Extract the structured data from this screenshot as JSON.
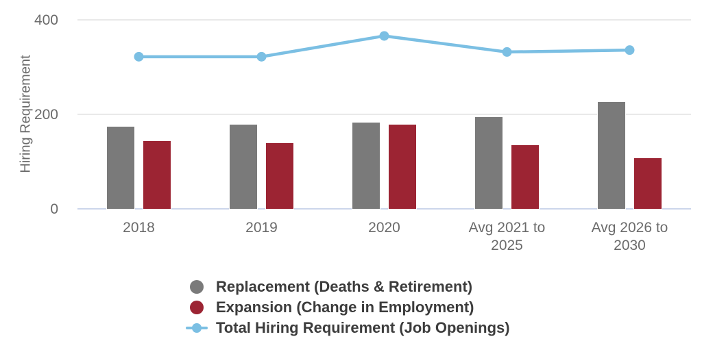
{
  "chart_data": {
    "type": "bar-line-combo",
    "title": "",
    "xlabel": "",
    "ylabel": "Hiring Requirement",
    "categories": [
      "2018",
      "2019",
      "2020",
      "Avg 2021 to 2025",
      "Avg 2026 to 2030"
    ],
    "yticks": [
      0,
      200,
      400
    ],
    "ylim": [
      0,
      400
    ],
    "grid": true,
    "legend_position": "bottom",
    "series": [
      {
        "name": "Replacement (Deaths & Retirement)",
        "type": "bar",
        "color": "#7a7a7a",
        "values": [
          175,
          180,
          184,
          195,
          227
        ]
      },
      {
        "name": "Expansion (Change in Employment)",
        "type": "bar",
        "color": "#9c2433",
        "values": [
          145,
          140,
          180,
          136,
          108
        ]
      },
      {
        "name": "Total Hiring Requirement (Job Openings)",
        "type": "line",
        "color": "#7bbfe3",
        "values": [
          322,
          322,
          366,
          332,
          336
        ]
      }
    ]
  },
  "colors": {
    "gridline": "#e9e9e9",
    "axis_line": "#ccd6eb",
    "tick_text": "#6b6b6b",
    "legend_text": "#3c3c3c",
    "background": "#ffffff"
  }
}
